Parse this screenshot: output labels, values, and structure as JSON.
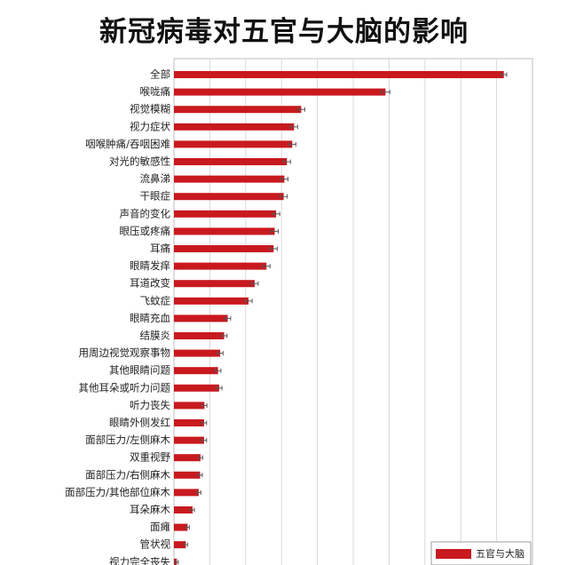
{
  "chart_data": {
    "type": "bar",
    "orientation": "horizontal",
    "title": "新冠病毒对五官与大脑的影响",
    "xlabel": "",
    "ylabel": "",
    "xlim": [
      0,
      100
    ],
    "grid": true,
    "legend_position": "bottom-right",
    "colors": {
      "bar": "#c8191f",
      "error": "#555555",
      "grid": "#d9d9d9"
    },
    "series": [
      {
        "name": "五官与大脑"
      }
    ],
    "categories": [
      "全部",
      "喉咙痛",
      "视觉模糊",
      "视力症状",
      "咽喉肿痛/吞咽困难",
      "对光的敏感性",
      "流鼻涕",
      "干眼症",
      "声音的变化",
      "眼压或疼痛",
      "耳痛",
      "眼睛发痒",
      "耳道改变",
      "飞蚊症",
      "眼睛充血",
      "结膜炎",
      "用周边视觉观察事物",
      "其他眼睛问题",
      "其他耳朵或听力问题",
      "听力丧失",
      "眼睛外侧发红",
      "面部压力/左侧麻木",
      "双重视野",
      "面部压力/右侧麻木",
      "面部压力/其他部位麻木",
      "耳朵麻木",
      "面瘫",
      "管状视",
      "视力完全丧失"
    ],
    "values": [
      92,
      59,
      35.5,
      33.5,
      33,
      31.5,
      30.8,
      30.6,
      28.5,
      28.1,
      27.8,
      25.8,
      22.5,
      20.8,
      15,
      14,
      12.9,
      12.3,
      12.6,
      8.5,
      8.4,
      8.4,
      7.4,
      7.3,
      6.9,
      5.2,
      3.8,
      3.3,
      0.8
    ],
    "errors": [
      0.8,
      1.2,
      1.0,
      1.0,
      1.0,
      1.0,
      1.0,
      1.0,
      1.0,
      1.0,
      1.0,
      1.0,
      1.0,
      1.0,
      0.8,
      0.8,
      0.8,
      0.8,
      0.8,
      0.7,
      0.7,
      0.7,
      0.6,
      0.6,
      0.6,
      0.5,
      0.5,
      0.5,
      0.4
    ]
  }
}
